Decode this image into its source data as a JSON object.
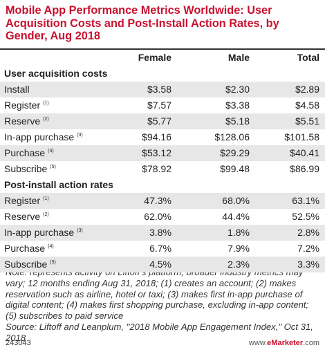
{
  "title": "Mobile App Performance Metrics Worldwide: User Acquisition Costs and Post-Install Action Rates, by Gender, Aug 2018",
  "columns": [
    "Female",
    "Male",
    "Total"
  ],
  "sections": [
    {
      "heading": "User acquisition costs",
      "rows": [
        {
          "label": "Install",
          "note": "",
          "values": [
            "$3.58",
            "$2.30",
            "$2.89"
          ]
        },
        {
          "label": "Register",
          "note": "(1)",
          "values": [
            "$7.57",
            "$3.38",
            "$4.58"
          ]
        },
        {
          "label": "Reserve",
          "note": "(2)",
          "values": [
            "$5.77",
            "$5.18",
            "$5.51"
          ]
        },
        {
          "label": "In-app purchase",
          "note": "(3)",
          "values": [
            "$94.16",
            "$128.06",
            "$101.58"
          ]
        },
        {
          "label": "Purchase",
          "note": "(4)",
          "values": [
            "$53.12",
            "$29.29",
            "$40.41"
          ]
        },
        {
          "label": "Subscribe",
          "note": "(5)",
          "values": [
            "$78.92",
            "$99.48",
            "$86.99"
          ]
        }
      ]
    },
    {
      "heading": "Post-install action rates",
      "rows": [
        {
          "label": "Register",
          "note": "(1)",
          "values": [
            "47.3%",
            "68.0%",
            "63.1%"
          ]
        },
        {
          "label": "Reserve",
          "note": "(2)",
          "values": [
            "62.0%",
            "44.4%",
            "52.5%"
          ]
        },
        {
          "label": "In-app purchase",
          "note": "(3)",
          "values": [
            "3.8%",
            "1.8%",
            "2.8%"
          ]
        },
        {
          "label": "Purchase",
          "note": "(4)",
          "values": [
            "6.7%",
            "7.9%",
            "7.2%"
          ]
        },
        {
          "label": "Subscribe",
          "note": "(5)",
          "values": [
            "4.5%",
            "2.3%",
            "3.3%"
          ]
        }
      ]
    }
  ],
  "note": "Note: represents activity on Liftoff's platform, broader industry metrics may vary; 12 months ending Aug 31, 2018; (1) creates an account; (2) makes reservation such as airline, hotel or taxi; (3) makes first in-app purchase of digital content; (4) makes first shopping purchase, excluding in-app content; (5) subscribes to paid service",
  "source": "Source: Liftoff and Leanplum, \"2018 Mobile App Engagement Index,\" Oct 31, 2018",
  "footer": {
    "id": "243043",
    "brand_prefix": "www.",
    "brand_name": "eMarketer",
    "brand_suffix": ".com"
  },
  "colors": {
    "accent": "#c8102e",
    "row_shade": "#e7e7e7"
  }
}
